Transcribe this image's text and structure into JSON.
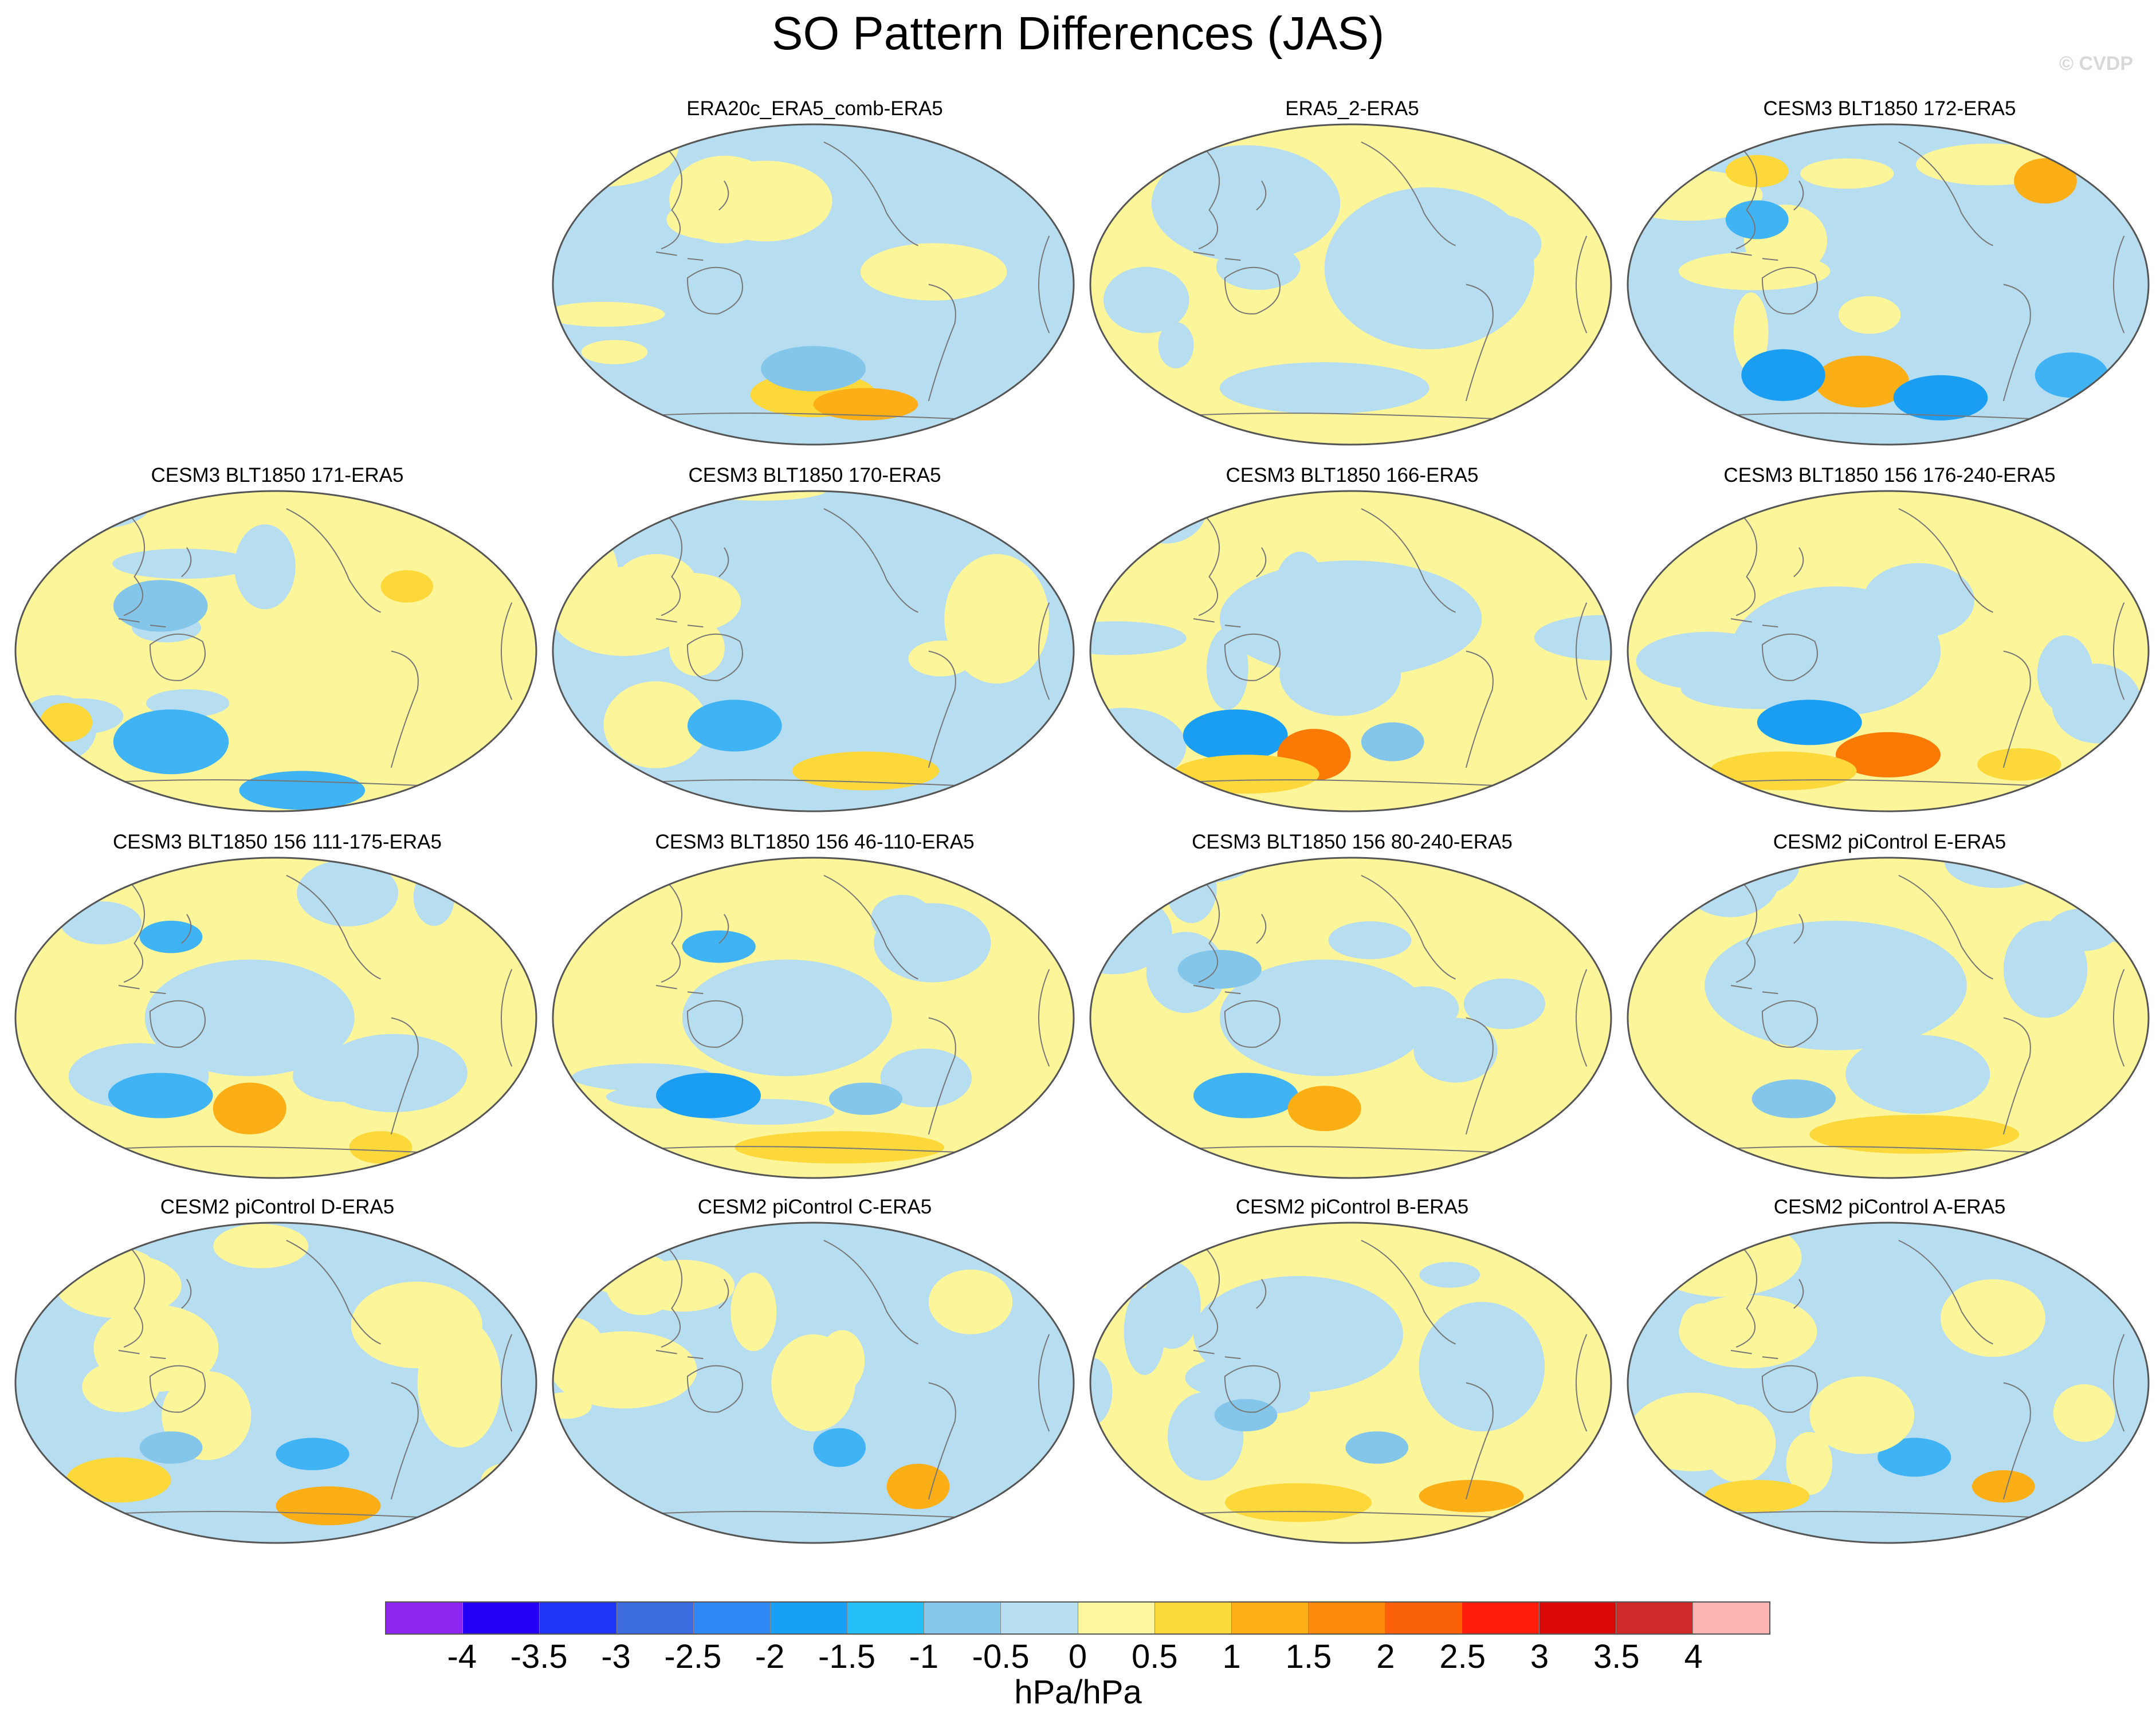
{
  "title": "SO Pattern Differences (JAS)",
  "watermark": "© CVDP",
  "colors": {
    "ocean_neg": "#b7ddf0",
    "pos": "#fdf59a",
    "pos1": "#fdd83a",
    "pos2": "#fcae16",
    "pos3": "#fb7a06",
    "neg1": "#84c6ea",
    "neg2": "#3fb3f4",
    "neg3": "#1a9ef3",
    "coast": "#777777"
  },
  "panels": [
    {
      "label": "ERA20c_ERA5_comb-ERA5",
      "base": "neg",
      "anom": [
        [
          0.5,
          0.84,
          0.12,
          0.07,
          "pos1"
        ],
        [
          0.6,
          0.87,
          0.1,
          0.05,
          "pos2"
        ],
        [
          0.5,
          0.76,
          0.1,
          0.07,
          "neg1"
        ],
        [
          0.3,
          0.3,
          0.08,
          0.06,
          "pos"
        ]
      ]
    },
    {
      "label": "ERA5_2-ERA5",
      "base": "pos",
      "anom": [
        [
          0.3,
          0.25,
          0.18,
          0.18,
          "neg"
        ],
        [
          0.65,
          0.45,
          0.2,
          0.25,
          "neg"
        ],
        [
          0.45,
          0.82,
          0.2,
          0.08,
          "neg"
        ]
      ]
    },
    {
      "label": "CESM3 BLT1850 172-ERA5",
      "base": "neg",
      "anom": [
        [
          0.45,
          0.8,
          0.09,
          0.08,
          "pos2"
        ],
        [
          0.3,
          0.78,
          0.08,
          0.08,
          "neg3"
        ],
        [
          0.6,
          0.85,
          0.09,
          0.07,
          "neg3"
        ],
        [
          0.85,
          0.78,
          0.07,
          0.07,
          "neg2"
        ],
        [
          0.8,
          0.18,
          0.06,
          0.07,
          "pos2"
        ],
        [
          0.25,
          0.3,
          0.06,
          0.06,
          "neg2"
        ],
        [
          0.25,
          0.15,
          0.06,
          0.05,
          "pos1"
        ]
      ]
    },
    {
      "label": "CESM3 BLT1850 171-ERA5",
      "base": "pos",
      "anom": [
        [
          0.3,
          0.78,
          0.11,
          0.1,
          "neg2"
        ],
        [
          0.55,
          0.93,
          0.12,
          0.06,
          "neg2"
        ],
        [
          0.28,
          0.36,
          0.09,
          0.08,
          "neg1"
        ],
        [
          0.1,
          0.72,
          0.05,
          0.06,
          "pos1"
        ],
        [
          0.75,
          0.3,
          0.05,
          0.05,
          "pos1"
        ]
      ]
    },
    {
      "label": "CESM3 BLT1850 170-ERA5",
      "base": "neg",
      "anom": [
        [
          0.35,
          0.73,
          0.09,
          0.08,
          "neg2"
        ],
        [
          0.6,
          0.87,
          0.14,
          0.06,
          "pos1"
        ],
        [
          0.85,
          0.4,
          0.1,
          0.2,
          "pos"
        ],
        [
          0.2,
          0.3,
          0.08,
          0.1,
          "pos"
        ]
      ]
    },
    {
      "label": "CESM3 BLT1850 166-ERA5",
      "base": "pos",
      "anom": [
        [
          0.28,
          0.76,
          0.1,
          0.08,
          "neg3"
        ],
        [
          0.43,
          0.82,
          0.07,
          0.08,
          "pos3"
        ],
        [
          0.58,
          0.78,
          0.06,
          0.06,
          "neg1"
        ],
        [
          0.5,
          0.4,
          0.25,
          0.18,
          "neg"
        ],
        [
          0.3,
          0.88,
          0.14,
          0.06,
          "pos1"
        ]
      ]
    },
    {
      "label": "CESM3 BLT1850 156 176-240-ERA5",
      "base": "pos",
      "anom": [
        [
          0.4,
          0.5,
          0.2,
          0.2,
          "neg"
        ],
        [
          0.35,
          0.72,
          0.1,
          0.07,
          "neg3"
        ],
        [
          0.5,
          0.82,
          0.1,
          0.07,
          "pos3"
        ],
        [
          0.3,
          0.87,
          0.14,
          0.06,
          "pos1"
        ],
        [
          0.75,
          0.85,
          0.08,
          0.05,
          "pos1"
        ]
      ]
    },
    {
      "label": "CESM3 BLT1850 156 111-175-ERA5",
      "base": "pos",
      "anom": [
        [
          0.28,
          0.74,
          0.1,
          0.07,
          "neg2"
        ],
        [
          0.45,
          0.78,
          0.07,
          0.08,
          "pos2"
        ],
        [
          0.3,
          0.25,
          0.06,
          0.05,
          "neg2"
        ],
        [
          0.45,
          0.5,
          0.2,
          0.18,
          "neg"
        ],
        [
          0.7,
          0.9,
          0.06,
          0.05,
          "pos1"
        ]
      ]
    },
    {
      "label": "CESM3 BLT1850 156 46-110-ERA5",
      "base": "pos",
      "anom": [
        [
          0.3,
          0.74,
          0.1,
          0.07,
          "neg3"
        ],
        [
          0.32,
          0.28,
          0.07,
          0.05,
          "neg2"
        ],
        [
          0.45,
          0.5,
          0.2,
          0.18,
          "neg"
        ],
        [
          0.55,
          0.9,
          0.2,
          0.05,
          "pos1"
        ],
        [
          0.6,
          0.75,
          0.07,
          0.05,
          "neg1"
        ]
      ]
    },
    {
      "label": "CESM3 BLT1850 156 80-240-ERA5",
      "base": "pos",
      "anom": [
        [
          0.3,
          0.74,
          0.1,
          0.07,
          "neg2"
        ],
        [
          0.45,
          0.78,
          0.07,
          0.07,
          "pos2"
        ],
        [
          0.45,
          0.5,
          0.2,
          0.18,
          "neg"
        ],
        [
          0.25,
          0.35,
          0.08,
          0.06,
          "neg1"
        ],
        [
          0.7,
          0.6,
          0.08,
          0.1,
          "neg"
        ]
      ]
    },
    {
      "label": "CESM2 piControl E-ERA5",
      "base": "pos",
      "anom": [
        [
          0.32,
          0.75,
          0.08,
          0.06,
          "neg1"
        ],
        [
          0.4,
          0.4,
          0.25,
          0.2,
          "neg"
        ],
        [
          0.55,
          0.86,
          0.2,
          0.06,
          "pos1"
        ],
        [
          0.8,
          0.35,
          0.08,
          0.15,
          "neg"
        ]
      ]
    },
    {
      "label": "CESM2 piControl D-ERA5",
      "base": "neg",
      "anom": [
        [
          0.6,
          0.88,
          0.1,
          0.06,
          "pos2"
        ],
        [
          0.57,
          0.72,
          0.07,
          0.05,
          "neg2"
        ],
        [
          0.3,
          0.7,
          0.06,
          0.05,
          "neg1"
        ],
        [
          0.2,
          0.8,
          0.1,
          0.07,
          "pos1"
        ],
        [
          0.2,
          0.2,
          0.12,
          0.1,
          "pos"
        ],
        [
          0.85,
          0.5,
          0.08,
          0.2,
          "pos"
        ]
      ]
    },
    {
      "label": "CESM2 piControl C-ERA5",
      "base": "neg",
      "anom": [
        [
          0.7,
          0.82,
          0.06,
          0.07,
          "pos2"
        ],
        [
          0.55,
          0.7,
          0.05,
          0.06,
          "neg2"
        ],
        [
          0.5,
          0.5,
          0.08,
          0.15,
          "pos"
        ],
        [
          0.25,
          0.2,
          0.1,
          0.08,
          "pos"
        ],
        [
          0.8,
          0.25,
          0.08,
          0.1,
          "pos"
        ]
      ]
    },
    {
      "label": "CESM2 piControl B-ERA5",
      "base": "pos",
      "anom": [
        [
          0.4,
          0.87,
          0.14,
          0.06,
          "pos1"
        ],
        [
          0.73,
          0.85,
          0.1,
          0.05,
          "pos2"
        ],
        [
          0.55,
          0.7,
          0.06,
          0.05,
          "neg1"
        ],
        [
          0.3,
          0.6,
          0.06,
          0.05,
          "neg1"
        ],
        [
          0.4,
          0.35,
          0.2,
          0.18,
          "neg"
        ],
        [
          0.75,
          0.45,
          0.12,
          0.2,
          "neg"
        ]
      ]
    },
    {
      "label": "CESM2 piControl A-ERA5",
      "base": "neg",
      "anom": [
        [
          0.55,
          0.73,
          0.07,
          0.06,
          "neg2"
        ],
        [
          0.72,
          0.82,
          0.06,
          0.05,
          "pos2"
        ],
        [
          0.45,
          0.6,
          0.1,
          0.12,
          "pos"
        ],
        [
          0.25,
          0.85,
          0.1,
          0.05,
          "pos1"
        ],
        [
          0.7,
          0.3,
          0.1,
          0.12,
          "pos"
        ]
      ]
    }
  ],
  "colorbar": {
    "colors": [
      "#8e26f0",
      "#2300f5",
      "#1f34f5",
      "#3c6ce0",
      "#2f88f6",
      "#17a1f6",
      "#26c0f8",
      "#86c8eb",
      "#b8def1",
      "#fef7a0",
      "#fcd93a",
      "#fcaf16",
      "#fc8a0a",
      "#fa5f0a",
      "#fd1d0a",
      "#da0707",
      "#cf2a2a",
      "#ffb4b4"
    ],
    "labels": [
      "-4",
      "-3.5",
      "-3",
      "-2.5",
      "-2",
      "-1.5",
      "-1",
      "-0.5",
      "0",
      "0.5",
      "1",
      "1.5",
      "2",
      "2.5",
      "3",
      "3.5",
      "4"
    ],
    "units": "hPa/hPa"
  }
}
